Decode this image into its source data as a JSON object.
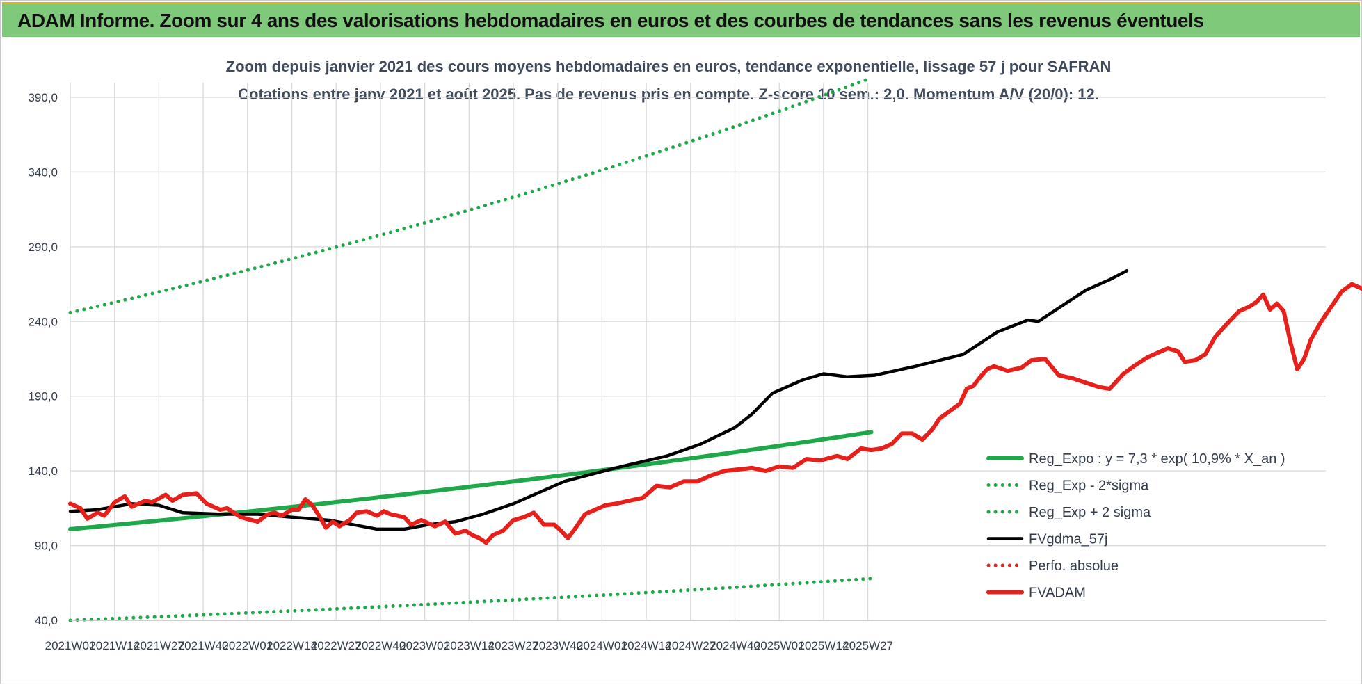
{
  "banner": {
    "title": "ADAM Informe. Zoom sur 4 ans des valorisations hebdomadaires en euros et des courbes de tendances sans les revenus éventuels"
  },
  "colors": {
    "banner_bg": "#7fc97a",
    "regression": "#1fa84a",
    "bands": "#1fa84a",
    "smoothed": "#000000",
    "price": "#e8201b",
    "perf_absolue": "#e8201b",
    "grid": "#d9d9d9"
  },
  "chart_data": {
    "type": "line",
    "title": [
      "Zoom depuis janvier 2021 des cours moyens hebdomadaires en euros, tendance exponentielle, lissage 57 j pour SAFRAN",
      "Cotations entre janv 2021 et août 2025.  Pas de revenus pris en compte. Z-score 10 sem.: 2,0. Momentum A/V (20/0): 12."
    ],
    "xlabel": "",
    "ylabel": "",
    "ylim": [
      40,
      400
    ],
    "y_ticks": [
      "40,0",
      "90,0",
      "140,0",
      "190,0",
      "240,0",
      "290,0",
      "340,0",
      "390,0"
    ],
    "x_ticks": [
      "2021W01",
      "2021W14",
      "2021W27",
      "2021W40",
      "2022W01",
      "2022W14",
      "2022W27",
      "2022W40",
      "2023W01",
      "2023W14",
      "2023W27",
      "2023W40",
      "2024W01",
      "2024W14",
      "2024W27",
      "2024W40",
      "2025W01",
      "2025W14",
      "2025W27"
    ],
    "grid": true,
    "legend_position": "right",
    "series": [
      {
        "name": "Reg_Expo : y = 7,3 * exp( 10,9% *  X_an )",
        "style": "solid-thick",
        "color": "#1fa84a",
        "keypoints": [
          [
            0,
            101
          ],
          [
            235,
            166
          ]
        ]
      },
      {
        "name": "Reg_Exp - 2*sigma",
        "style": "dotted",
        "color": "#1fa84a",
        "keypoints": [
          [
            0,
            40
          ],
          [
            235,
            68
          ]
        ]
      },
      {
        "name": "Reg_Exp + 2 sigma",
        "style": "dotted",
        "color": "#1fa84a",
        "keypoints": [
          [
            0,
            246
          ],
          [
            235,
            403
          ]
        ]
      },
      {
        "name": "FVgdma_57j",
        "style": "solid",
        "color": "#000000",
        "keypoints": [
          [
            0,
            113
          ],
          [
            8,
            114
          ],
          [
            18,
            118
          ],
          [
            26,
            117
          ],
          [
            33,
            112
          ],
          [
            45,
            111
          ],
          [
            55,
            111
          ],
          [
            65,
            109
          ],
          [
            76,
            107
          ],
          [
            90,
            101
          ],
          [
            98,
            101
          ],
          [
            105,
            104
          ],
          [
            113,
            106
          ],
          [
            121,
            111
          ],
          [
            130,
            118
          ],
          [
            145,
            133
          ],
          [
            160,
            142
          ],
          [
            175,
            150
          ],
          [
            185,
            158
          ],
          [
            195,
            169
          ],
          [
            200,
            178
          ],
          [
            206,
            192
          ],
          [
            215,
            201
          ],
          [
            221,
            205
          ],
          [
            228,
            203
          ],
          [
            236,
            204
          ],
          [
            248,
            210
          ],
          [
            262,
            218
          ],
          [
            272,
            233
          ],
          [
            281,
            241
          ],
          [
            284,
            240
          ],
          [
            290,
            249
          ],
          [
            298,
            261
          ],
          [
            305,
            268
          ],
          [
            310,
            274
          ]
        ]
      },
      {
        "name": "Perfo. absolue",
        "style": "dotted",
        "color": "#e8201b",
        "keypoints": []
      },
      {
        "name": "FVADAM",
        "style": "solid-thick",
        "color": "#e8201b",
        "keypoints": [
          [
            0,
            118
          ],
          [
            3,
            115
          ],
          [
            5,
            108
          ],
          [
            8,
            112
          ],
          [
            10,
            110
          ],
          [
            13,
            119
          ],
          [
            16,
            123
          ],
          [
            18,
            116
          ],
          [
            22,
            120
          ],
          [
            24,
            119
          ],
          [
            28,
            124
          ],
          [
            30,
            120
          ],
          [
            33,
            124
          ],
          [
            37,
            125
          ],
          [
            40,
            118
          ],
          [
            44,
            114
          ],
          [
            46,
            115
          ],
          [
            50,
            109
          ],
          [
            55,
            106
          ],
          [
            58,
            111
          ],
          [
            60,
            112
          ],
          [
            62,
            110
          ],
          [
            65,
            114
          ],
          [
            67,
            114
          ],
          [
            69,
            121
          ],
          [
            71,
            117
          ],
          [
            73,
            110
          ],
          [
            75,
            102
          ],
          [
            77,
            106
          ],
          [
            79,
            103
          ],
          [
            82,
            107
          ],
          [
            84,
            112
          ],
          [
            87,
            113
          ],
          [
            90,
            110
          ],
          [
            92,
            113
          ],
          [
            94,
            111
          ],
          [
            96,
            110
          ],
          [
            98,
            109
          ],
          [
            100,
            104
          ],
          [
            103,
            107
          ],
          [
            105,
            105
          ],
          [
            107,
            103
          ],
          [
            110,
            106
          ],
          [
            113,
            98
          ],
          [
            116,
            100
          ],
          [
            118,
            97
          ],
          [
            120,
            95
          ],
          [
            122,
            92
          ],
          [
            124,
            97
          ],
          [
            127,
            100
          ],
          [
            130,
            107
          ],
          [
            133,
            109
          ],
          [
            136,
            112
          ],
          [
            139,
            104
          ],
          [
            142,
            104
          ],
          [
            144,
            100
          ],
          [
            146,
            95
          ],
          [
            148,
            101
          ],
          [
            151,
            111
          ],
          [
            154,
            114
          ],
          [
            157,
            117
          ],
          [
            160,
            118
          ],
          [
            164,
            120
          ],
          [
            168,
            122
          ],
          [
            172,
            130
          ],
          [
            176,
            129
          ],
          [
            180,
            133
          ],
          [
            184,
            133
          ],
          [
            188,
            137
          ],
          [
            192,
            140
          ],
          [
            196,
            141
          ],
          [
            200,
            142
          ],
          [
            204,
            140
          ],
          [
            208,
            143
          ],
          [
            212,
            142
          ],
          [
            216,
            148
          ],
          [
            220,
            147
          ],
          [
            225,
            150
          ],
          [
            228,
            148
          ],
          [
            232,
            155
          ],
          [
            235,
            154
          ],
          [
            238,
            155
          ],
          [
            241,
            158
          ],
          [
            244,
            165
          ],
          [
            247,
            165
          ],
          [
            250,
            161
          ],
          [
            253,
            168
          ],
          [
            255,
            175
          ],
          [
            258,
            180
          ],
          [
            261,
            185
          ],
          [
            263,
            195
          ],
          [
            265,
            197
          ],
          [
            267,
            203
          ],
          [
            269,
            208
          ],
          [
            271,
            210
          ],
          [
            275,
            207
          ],
          [
            279,
            209
          ],
          [
            282,
            214
          ],
          [
            286,
            215
          ],
          [
            290,
            204
          ],
          [
            294,
            202
          ],
          [
            298,
            199
          ],
          [
            302,
            196
          ],
          [
            305,
            195
          ],
          [
            307,
            200
          ],
          [
            309,
            205
          ],
          [
            312,
            210
          ],
          [
            316,
            216
          ],
          [
            320,
            220
          ],
          [
            322,
            222
          ],
          [
            325,
            220
          ],
          [
            327,
            213
          ],
          [
            330,
            214
          ],
          [
            333,
            218
          ],
          [
            336,
            230
          ],
          [
            340,
            240
          ],
          [
            343,
            247
          ],
          [
            346,
            250
          ],
          [
            348,
            253
          ],
          [
            350,
            258
          ],
          [
            352,
            248
          ],
          [
            354,
            252
          ],
          [
            356,
            247
          ],
          [
            358,
            226
          ],
          [
            360,
            208
          ],
          [
            362,
            215
          ],
          [
            364,
            228
          ],
          [
            367,
            240
          ],
          [
            370,
            250
          ],
          [
            373,
            260
          ],
          [
            376,
            265
          ],
          [
            379,
            262
          ],
          [
            382,
            268
          ],
          [
            384,
            277
          ],
          [
            386,
            282
          ],
          [
            388,
            281
          ],
          [
            390,
            284
          ]
        ]
      }
    ]
  }
}
